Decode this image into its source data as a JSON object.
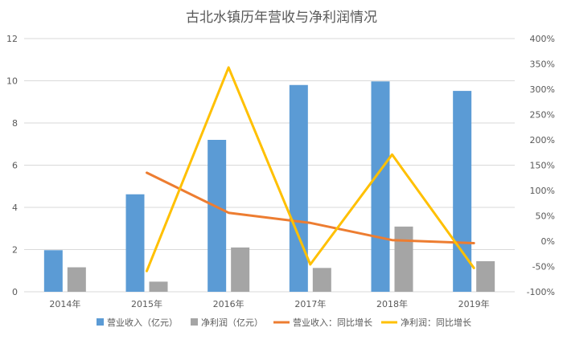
{
  "chart_data": {
    "type": "bar",
    "title": "古北水镇历年营收与净利润情况",
    "categories": [
      "2014年",
      "2015年",
      "2016年",
      "2017年",
      "2018年",
      "2019年"
    ],
    "bar_series": [
      {
        "name": "营业收入（亿元）",
        "color": "#5b9bd5",
        "values": [
          1.97,
          4.62,
          7.2,
          9.8,
          9.97,
          9.52
        ]
      },
      {
        "name": "净利润（亿元）",
        "color": "#a5a5a5",
        "values": [
          1.16,
          0.48,
          2.1,
          1.13,
          3.09,
          1.45
        ]
      }
    ],
    "line_series": [
      {
        "name": "营业收入：同比增长",
        "color": "#ed7d31",
        "values": [
          null,
          1.35,
          0.56,
          0.36,
          0.02,
          -0.04
        ]
      },
      {
        "name": "净利润：同比增长",
        "color": "#ffc000",
        "values": [
          null,
          -0.59,
          3.43,
          -0.46,
          1.71,
          -0.53
        ]
      }
    ],
    "y_left": {
      "min": 0,
      "max": 12,
      "step": 2,
      "tick_labels": [
        "0",
        "2",
        "4",
        "6",
        "8",
        "10",
        "12"
      ]
    },
    "y_right": {
      "min": -1.0,
      "max": 4.0,
      "step": 0.5,
      "tick_labels": [
        "-100%",
        "-50%",
        "0%",
        "50%",
        "100%",
        "150%",
        "200%",
        "250%",
        "300%",
        "350%",
        "400%"
      ]
    },
    "grid": true,
    "legend_position": "bottom"
  }
}
